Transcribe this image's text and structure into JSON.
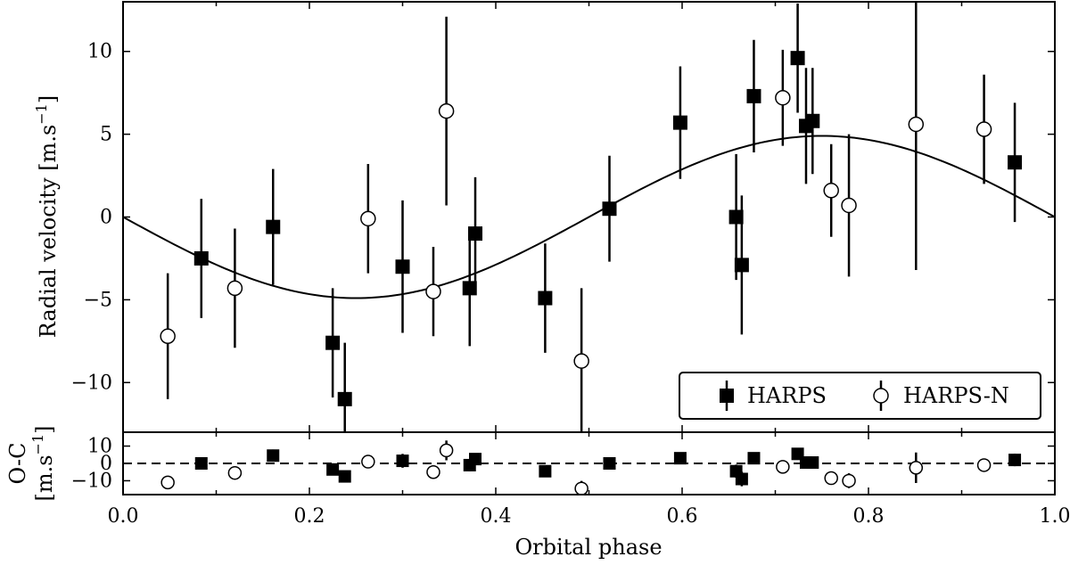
{
  "chart_data": [
    {
      "type": "scatter",
      "panel": "main",
      "xlabel": "",
      "ylabel": "Radial velocity [m.s",
      "ylabel_unit_exponent": "−1",
      "ylabel_close": "]",
      "xlim": [
        0.0,
        1.0
      ],
      "ylim": [
        -13,
        13
      ],
      "yticks": [
        10,
        5,
        0,
        -5,
        -10
      ],
      "ytick_labels": [
        "10",
        "5",
        "0",
        "−5",
        "−10"
      ],
      "legend": {
        "placement": "lower-right",
        "entries": [
          {
            "label": "HARPS",
            "marker": "filled-square"
          },
          {
            "label": "HARPS-N",
            "marker": "open-circle"
          }
        ]
      },
      "model_curve": {
        "description": "sinusoid",
        "amplitude": 4.9,
        "formula": "-K*sin(2*pi*phase)"
      },
      "series": [
        {
          "name": "HARPS",
          "marker": "filled-square",
          "points": [
            {
              "x": 0.084,
              "y": -2.5,
              "err": 3.6
            },
            {
              "x": 0.161,
              "y": -0.6,
              "err": 3.5
            },
            {
              "x": 0.225,
              "y": -7.6,
              "err": 3.3
            },
            {
              "x": 0.238,
              "y": -11.0,
              "err": 3.4
            },
            {
              "x": 0.3,
              "y": -3.0,
              "err": 4.0
            },
            {
              "x": 0.372,
              "y": -4.3,
              "err": 3.5
            },
            {
              "x": 0.378,
              "y": -1.0,
              "err": 3.4
            },
            {
              "x": 0.453,
              "y": -4.9,
              "err": 3.3
            },
            {
              "x": 0.522,
              "y": 0.5,
              "err": 3.2
            },
            {
              "x": 0.598,
              "y": 5.7,
              "err": 3.4
            },
            {
              "x": 0.658,
              "y": 0.0,
              "err": 3.8
            },
            {
              "x": 0.664,
              "y": -2.9,
              "err": 4.2
            },
            {
              "x": 0.677,
              "y": 7.3,
              "err": 3.4
            },
            {
              "x": 0.724,
              "y": 9.6,
              "err": 3.3
            },
            {
              "x": 0.733,
              "y": 5.5,
              "err": 3.5
            },
            {
              "x": 0.74,
              "y": 5.8,
              "err": 3.2
            },
            {
              "x": 0.957,
              "y": 3.3,
              "err": 3.6
            }
          ]
        },
        {
          "name": "HARPS-N",
          "marker": "open-circle",
          "points": [
            {
              "x": 0.048,
              "y": -7.2,
              "err": 3.8
            },
            {
              "x": 0.12,
              "y": -4.3,
              "err": 3.6
            },
            {
              "x": 0.263,
              "y": -0.1,
              "err": 3.3
            },
            {
              "x": 0.333,
              "y": -4.5,
              "err": 2.7
            },
            {
              "x": 0.347,
              "y": 6.4,
              "err": 5.7
            },
            {
              "x": 0.492,
              "y": -8.7,
              "err": 4.4
            },
            {
              "x": 0.708,
              "y": 7.2,
              "err": 2.9
            },
            {
              "x": 0.76,
              "y": 1.6,
              "err": 2.8
            },
            {
              "x": 0.779,
              "y": 0.7,
              "err": 4.3
            },
            {
              "x": 0.851,
              "y": 5.6,
              "err": 8.8
            },
            {
              "x": 0.924,
              "y": 5.3,
              "err": 3.3
            }
          ]
        }
      ]
    },
    {
      "type": "scatter",
      "panel": "residuals",
      "xlabel": "Orbital phase",
      "ylabel_line1": "O-C",
      "ylabel_line2": "[m.s",
      "ylabel_line2_exponent": "−1",
      "ylabel_line2_close": "]",
      "xlim": [
        0.0,
        1.0
      ],
      "ylim": [
        -18,
        18
      ],
      "yticks": [
        10,
        0,
        -10
      ],
      "ytick_labels": [
        "10",
        "0",
        "−10"
      ],
      "xticks": [
        0.0,
        0.2,
        0.4,
        0.6,
        0.8,
        1.0
      ],
      "xtick_labels": [
        "0.0",
        "0.2",
        "0.4",
        "0.6",
        "0.8",
        "1.0"
      ],
      "zero_line": "dashed",
      "series": [
        {
          "name": "HARPS",
          "marker": "filled-square",
          "points": [
            {
              "x": 0.084,
              "y": 0.0,
              "err": 3.6
            },
            {
              "x": 0.161,
              "y": 4.5,
              "err": 3.5
            },
            {
              "x": 0.225,
              "y": -3.5,
              "err": 3.3
            },
            {
              "x": 0.238,
              "y": -7.5,
              "err": 3.4
            },
            {
              "x": 0.3,
              "y": 1.5,
              "err": 4.0
            },
            {
              "x": 0.372,
              "y": -1.0,
              "err": 3.5
            },
            {
              "x": 0.378,
              "y": 2.5,
              "err": 3.4
            },
            {
              "x": 0.453,
              "y": -4.5,
              "err": 3.3
            },
            {
              "x": 0.522,
              "y": 0.0,
              "err": 3.2
            },
            {
              "x": 0.598,
              "y": 3.0,
              "err": 3.4
            },
            {
              "x": 0.658,
              "y": -4.5,
              "err": 3.8
            },
            {
              "x": 0.664,
              "y": -9.0,
              "err": 4.2
            },
            {
              "x": 0.677,
              "y": 3.0,
              "err": 3.4
            },
            {
              "x": 0.724,
              "y": 5.5,
              "err": 3.3
            },
            {
              "x": 0.733,
              "y": 0.5,
              "err": 3.5
            },
            {
              "x": 0.74,
              "y": 0.5,
              "err": 3.2
            },
            {
              "x": 0.957,
              "y": 2.0,
              "err": 3.6
            }
          ]
        },
        {
          "name": "HARPS-N",
          "marker": "open-circle",
          "points": [
            {
              "x": 0.048,
              "y": -11.0,
              "err": 3.8
            },
            {
              "x": 0.12,
              "y": -5.5,
              "err": 3.6
            },
            {
              "x": 0.263,
              "y": 1.0,
              "err": 3.3
            },
            {
              "x": 0.333,
              "y": -5.0,
              "err": 2.7
            },
            {
              "x": 0.347,
              "y": 7.5,
              "err": 5.7
            },
            {
              "x": 0.492,
              "y": -14.5,
              "err": 4.4
            },
            {
              "x": 0.708,
              "y": -2.0,
              "err": 2.9
            },
            {
              "x": 0.76,
              "y": -8.5,
              "err": 2.8
            },
            {
              "x": 0.779,
              "y": -10.0,
              "err": 4.3
            },
            {
              "x": 0.851,
              "y": -2.5,
              "err": 8.8
            },
            {
              "x": 0.924,
              "y": -1.0,
              "err": 3.3
            }
          ]
        }
      ]
    }
  ]
}
